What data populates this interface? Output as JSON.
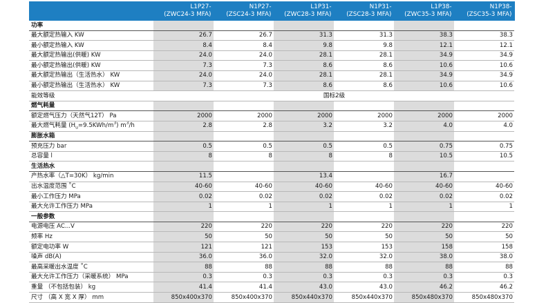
{
  "columns": [
    {
      "line1": "L1P27-",
      "line2": "(ZWC24-3 MFA)"
    },
    {
      "line1": "N1P27-",
      "line2": "(ZSC24-3 MFA)"
    },
    {
      "line1": "L1P31-",
      "line2": "(ZWC28-3 MFA)"
    },
    {
      "line1": "N1P31-",
      "line2": "(ZSC28-3 MFA)"
    },
    {
      "line1": "L1P38-",
      "line2": "(ZWC35-3 MFA)"
    },
    {
      "line1": "N1P38-",
      "line2": "(ZSC35-3 MFA)"
    }
  ],
  "sections": [
    {
      "title": "功率",
      "rows": [
        {
          "label": "最大额定热输入 KW",
          "values": [
            "26.7",
            "26.7",
            "31.3",
            "31.3",
            "38.3",
            "38.3"
          ]
        },
        {
          "label": "最小额定热输入 KW",
          "values": [
            "8.4",
            "8.4",
            "9.8",
            "9.8",
            "12.1",
            "12.1"
          ]
        },
        {
          "label": "最大额定热输出(供暖) KW",
          "values": [
            "24.0",
            "24.0",
            "28.1",
            "28.1",
            "34.9",
            "34.9"
          ]
        },
        {
          "label": "最小额定热输出(供暖) KW",
          "values": [
            "7.3",
            "7.3",
            "8.6",
            "8.6",
            "10.6",
            "10.6"
          ]
        },
        {
          "label": "最大额定热输出（生活热水） KW",
          "values": [
            "24.0",
            "24.0",
            "28.1",
            "28.1",
            "34.9",
            "34.9"
          ]
        },
        {
          "label": "最小额定热输出（生活热水） KW",
          "values": [
            "7.3",
            "7.3",
            "8.6",
            "8.6",
            "10.6",
            "10.6"
          ]
        },
        {
          "label": "能效等级",
          "span": "国标2级"
        }
      ]
    },
    {
      "title": "燃气耗量",
      "rows": [
        {
          "label": "额定燃气压力（天然气12T） Pa",
          "values": [
            "2000",
            "2000",
            "2000",
            "2000",
            "2000",
            "2000"
          ]
        },
        {
          "label": "最大燃气耗量 (H",
          "label_sub": "u",
          "label_mid": "=9.5KWh/m",
          "label_sup": "3",
          "label_end": ") m",
          "label_sup2": "3",
          "label_tail": "/h",
          "values": [
            "2.8",
            "2.8",
            "3.2",
            "3.2",
            "4.0",
            "4.0"
          ]
        }
      ]
    },
    {
      "title": "膨胀水箱",
      "rows": [
        {
          "label": "预充压力 bar",
          "values": [
            "0.5",
            "0.5",
            "0.5",
            "0.5",
            "0.75",
            "0.75"
          ]
        },
        {
          "label": "总容量 l",
          "values": [
            "8",
            "8",
            "8",
            "8",
            "10.5",
            "10.5"
          ]
        }
      ]
    },
    {
      "title": "生活热水",
      "rows": [
        {
          "label": "产热水率（△T=30K） kg/min",
          "values": [
            "11.5",
            "",
            "13.4",
            "",
            "16.7",
            ""
          ]
        },
        {
          "label": "出水温度范围 ˚C",
          "values": [
            "40-60",
            "40-60",
            "40-60",
            "40-60",
            "40-60",
            "40-60"
          ]
        },
        {
          "label": "最小工作压力 MPa",
          "values": [
            "0.02",
            "0.02",
            "0.02",
            "0.02",
            "0.02",
            "0.02"
          ]
        },
        {
          "label": "最大允许工作压力 MPa",
          "values": [
            "1",
            "1",
            "1",
            "1",
            "1",
            "1"
          ]
        }
      ]
    },
    {
      "title": "一般参数",
      "rows": [
        {
          "label": "电源电压 AC...V",
          "values": [
            "220",
            "220",
            "220",
            "220",
            "220",
            "220"
          ]
        },
        {
          "label": "频率 Hz",
          "values": [
            "50",
            "50",
            "50",
            "50",
            "50",
            "50"
          ]
        },
        {
          "label": "额定电功率 W",
          "values": [
            "121",
            "121",
            "153",
            "153",
            "158",
            "158"
          ]
        },
        {
          "label": "噪声 dB(A)",
          "values": [
            "36.0",
            "36.0",
            "32.0",
            "32.0",
            "38.0",
            "38.0"
          ]
        },
        {
          "label": "最高采暖出水温度 ˚C",
          "values": [
            "88",
            "88",
            "88",
            "88",
            "88",
            "88"
          ]
        },
        {
          "label": "最大允许工作压力（采暖系统） MPa",
          "values": [
            "0.3",
            "0.3",
            "0.3",
            "0.3",
            "0.3",
            "0.3"
          ]
        },
        {
          "label": "重量 （不包括包装） kg",
          "values": [
            "41.4",
            "41.4",
            "43.0",
            "43.0",
            "46.2",
            "46.2"
          ]
        },
        {
          "label": "尺寸 （高 X 宽 X 厚） mm",
          "values": [
            "850x400x370",
            "850x400x370",
            "850x440x370",
            "850x440x370",
            "850x480x370",
            "850x480x370"
          ]
        }
      ]
    }
  ]
}
